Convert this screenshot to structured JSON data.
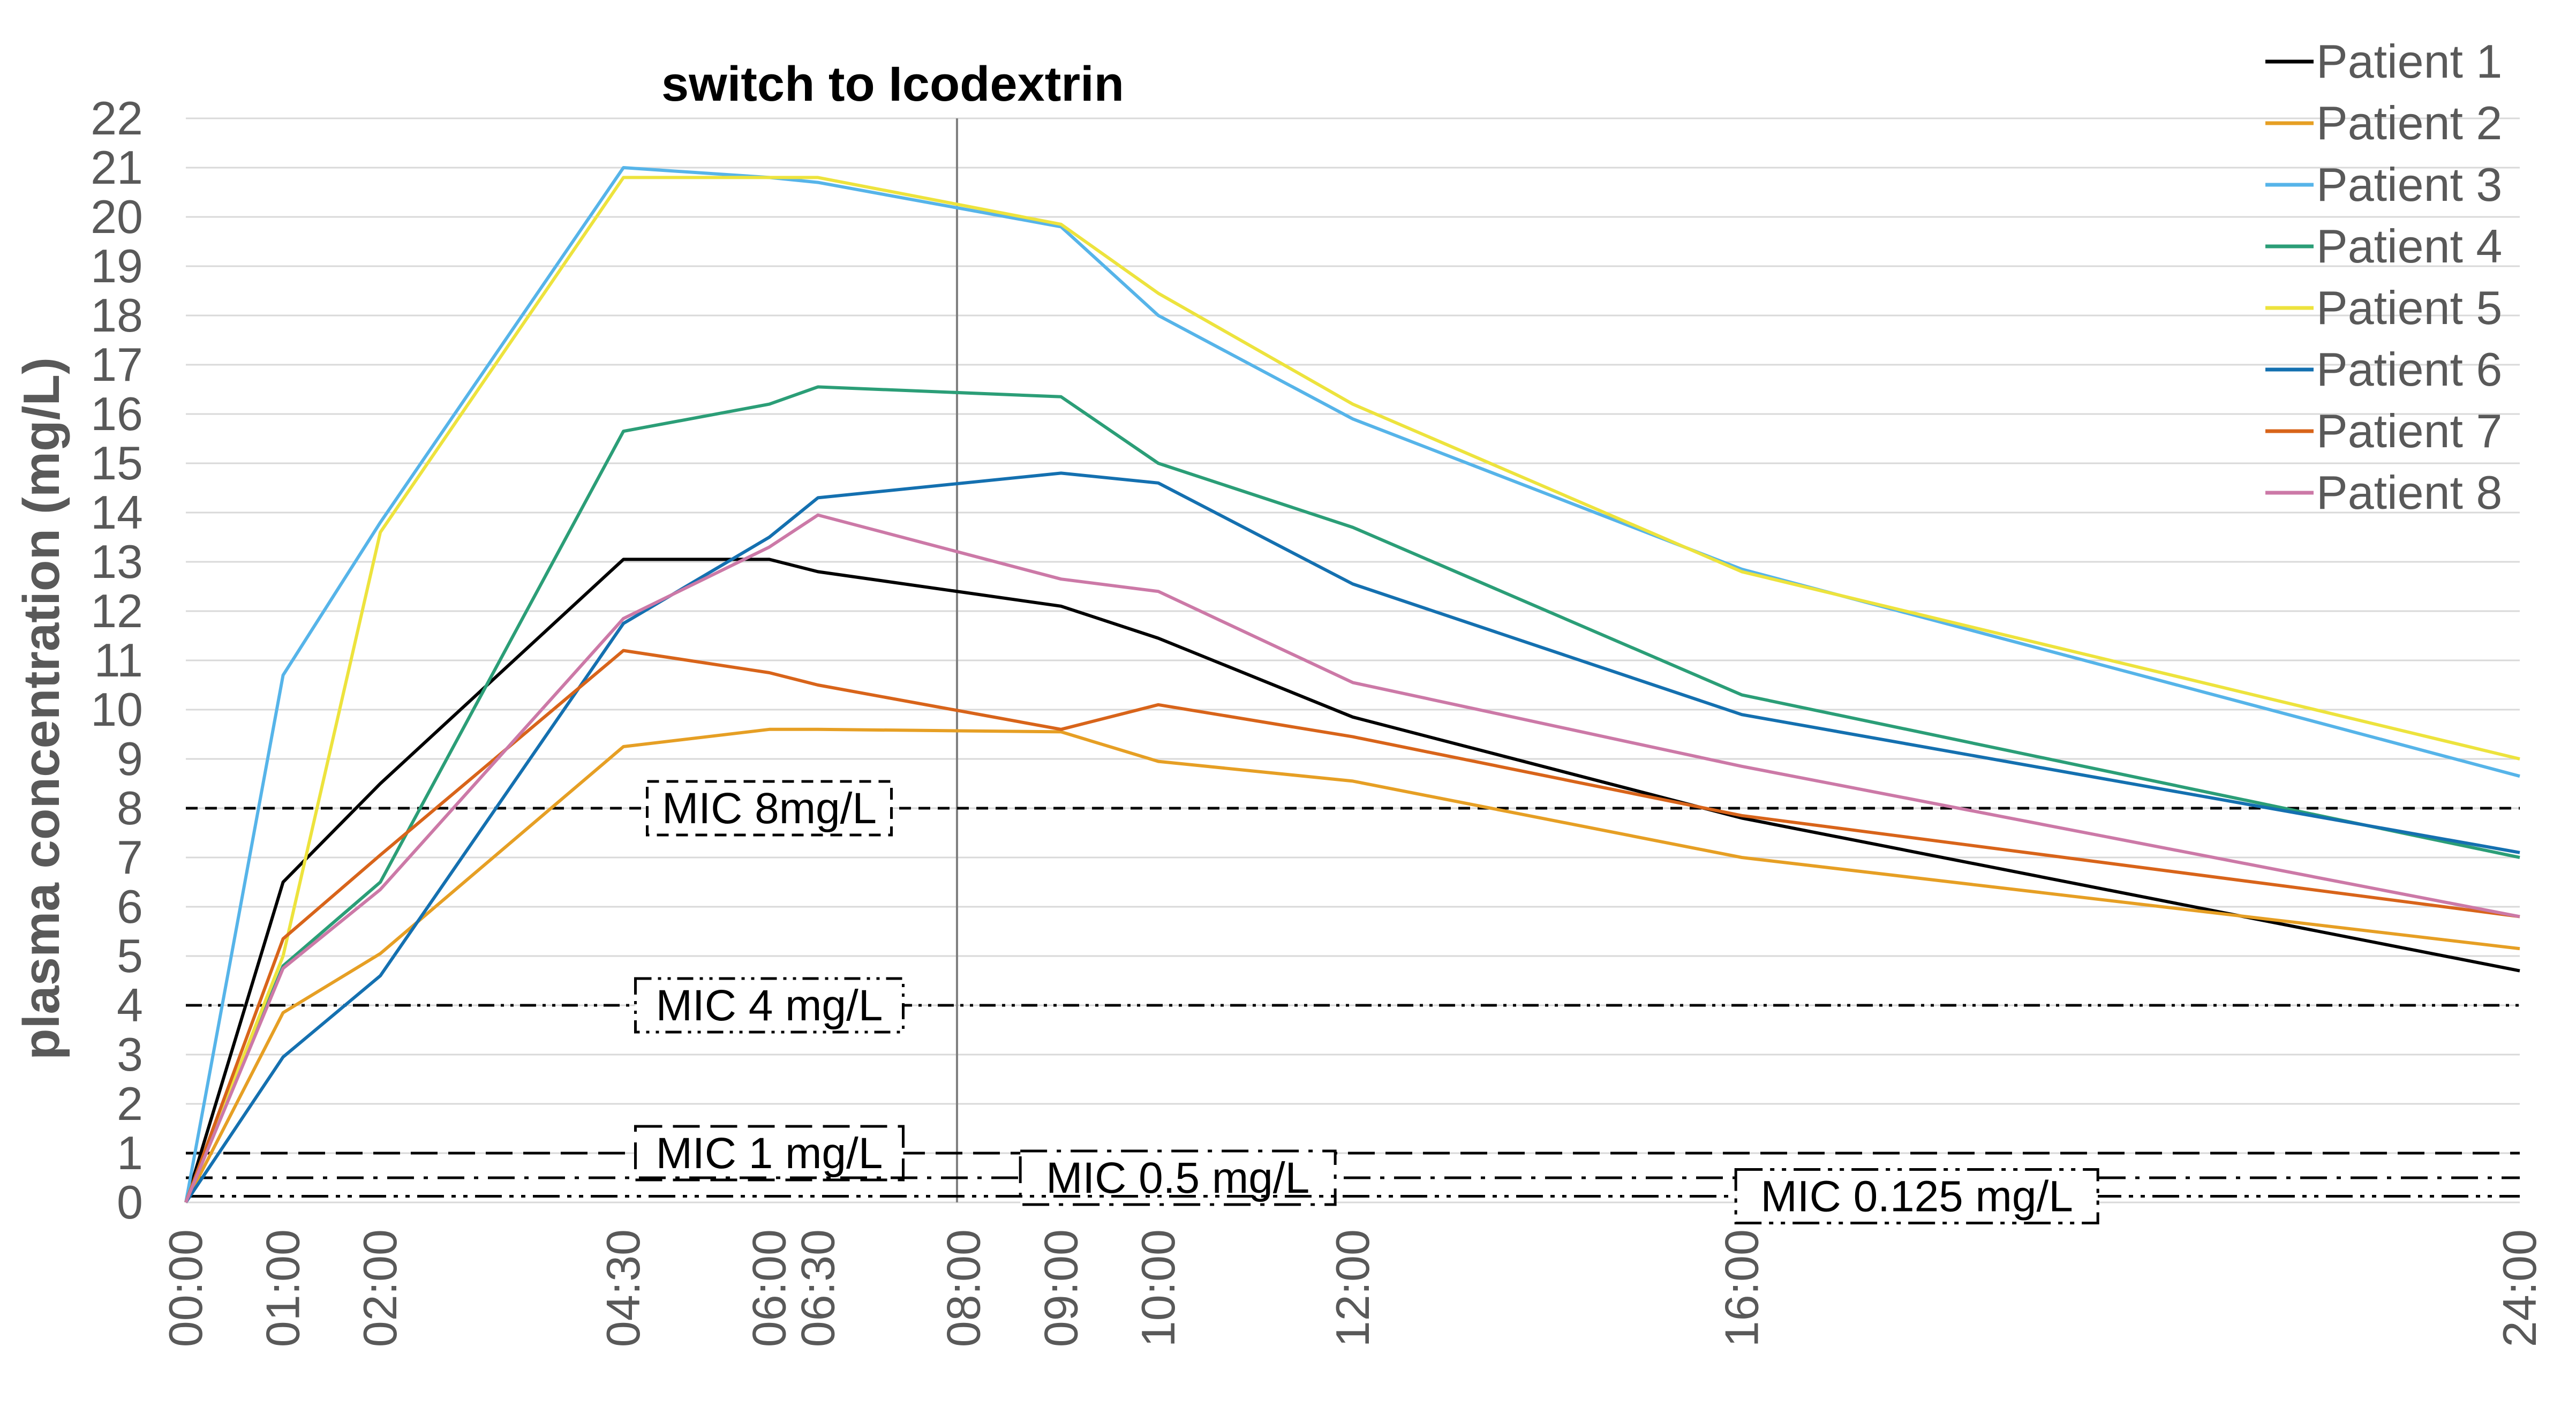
{
  "chart_data": {
    "type": "line",
    "ylabel": "plasma concentration (mg/L)",
    "xlabel": "",
    "ylim": [
      0,
      22
    ],
    "y_ticks": [
      0,
      1,
      2,
      3,
      4,
      5,
      6,
      7,
      8,
      9,
      10,
      11,
      12,
      13,
      14,
      15,
      16,
      17,
      18,
      19,
      20,
      21,
      22
    ],
    "x_range_hours": [
      0,
      24
    ],
    "x_ticks": [
      {
        "label": "00:00",
        "hours": 0
      },
      {
        "label": "01:00",
        "hours": 1
      },
      {
        "label": "02:00",
        "hours": 2
      },
      {
        "label": "04:30",
        "hours": 4.5
      },
      {
        "label": "06:00",
        "hours": 6
      },
      {
        "label": "06:30",
        "hours": 6.5
      },
      {
        "label": "08:00",
        "hours": 8
      },
      {
        "label": "09:00",
        "hours": 9
      },
      {
        "label": "10:00",
        "hours": 10
      },
      {
        "label": "12:00",
        "hours": 12
      },
      {
        "label": "16:00",
        "hours": 16
      },
      {
        "label": "24:00",
        "hours": 24
      }
    ],
    "grid": "horizontal",
    "legend_position": "top-right",
    "annotation": {
      "text": "switch to Icodextrin",
      "x": 7.93
    },
    "thresholds": [
      {
        "label": "MIC 8mg/L",
        "y": 8,
        "style": "dashed",
        "label_x": 6.0
      },
      {
        "label": "MIC 4 mg/L",
        "y": 4,
        "style": "dashdotdot",
        "label_x": 6.0
      },
      {
        "label": "MIC 1 mg/L",
        "y": 1,
        "style": "longdash",
        "label_x": 6.0
      },
      {
        "label": "MIC 0.5 mg/L",
        "y": 0.5,
        "style": "longdashdot",
        "label_x": 10.2
      },
      {
        "label": "MIC 0.125 mg/L",
        "y": 0.125,
        "style": "longdashdotdot",
        "label_x": 17.8
      }
    ],
    "series": [
      {
        "name": "Patient 1",
        "color": "#000000",
        "points": [
          [
            0,
            0
          ],
          [
            1,
            6.5
          ],
          [
            2,
            8.5
          ],
          [
            4.5,
            13.05
          ],
          [
            6,
            13.05
          ],
          [
            6.5,
            12.8
          ],
          [
            9,
            12.1
          ],
          [
            10,
            11.45
          ],
          [
            12,
            9.85
          ],
          [
            16,
            7.8
          ],
          [
            24,
            4.7
          ]
        ]
      },
      {
        "name": "Patient 2",
        "color": "#E69F24",
        "points": [
          [
            0,
            0
          ],
          [
            1,
            3.85
          ],
          [
            2,
            5.05
          ],
          [
            4.5,
            9.25
          ],
          [
            6,
            9.6
          ],
          [
            6.5,
            9.6
          ],
          [
            9,
            9.55
          ],
          [
            10,
            8.95
          ],
          [
            12,
            8.55
          ],
          [
            16,
            7.0
          ],
          [
            24,
            5.15
          ]
        ]
      },
      {
        "name": "Patient 3",
        "color": "#56B4E9",
        "points": [
          [
            0,
            0
          ],
          [
            1,
            10.7
          ],
          [
            2,
            13.8
          ],
          [
            4.5,
            21.0
          ],
          [
            6,
            20.8
          ],
          [
            6.5,
            20.7
          ],
          [
            9,
            19.8
          ],
          [
            10,
            18.0
          ],
          [
            12,
            15.9
          ],
          [
            16,
            12.85
          ],
          [
            24,
            8.65
          ]
        ]
      },
      {
        "name": "Patient 4",
        "color": "#2B9E77",
        "points": [
          [
            0,
            0
          ],
          [
            1,
            4.8
          ],
          [
            2,
            6.5
          ],
          [
            4.5,
            15.65
          ],
          [
            6,
            16.2
          ],
          [
            6.5,
            16.55
          ],
          [
            9,
            16.35
          ],
          [
            10,
            15.0
          ],
          [
            12,
            13.7
          ],
          [
            16,
            10.3
          ],
          [
            24,
            7.0
          ]
        ]
      },
      {
        "name": "Patient 5",
        "color": "#EDE33D",
        "points": [
          [
            0,
            0
          ],
          [
            1,
            5.0
          ],
          [
            2,
            13.6
          ],
          [
            4.5,
            20.8
          ],
          [
            6,
            20.8
          ],
          [
            6.5,
            20.8
          ],
          [
            9,
            19.85
          ],
          [
            10,
            18.45
          ],
          [
            12,
            16.2
          ],
          [
            16,
            12.8
          ],
          [
            24,
            9.0
          ]
        ]
      },
      {
        "name": "Patient 6",
        "color": "#1470B0",
        "points": [
          [
            0,
            0
          ],
          [
            1,
            2.95
          ],
          [
            2,
            4.6
          ],
          [
            4.5,
            11.75
          ],
          [
            6,
            13.5
          ],
          [
            6.5,
            14.3
          ],
          [
            9,
            14.8
          ],
          [
            10,
            14.6
          ],
          [
            12,
            12.55
          ],
          [
            16,
            9.9
          ],
          [
            24,
            7.1
          ]
        ]
      },
      {
        "name": "Patient 7",
        "color": "#D8641A",
        "points": [
          [
            0,
            0
          ],
          [
            1,
            5.35
          ],
          [
            2,
            7.05
          ],
          [
            4.5,
            11.2
          ],
          [
            6,
            10.75
          ],
          [
            6.5,
            10.5
          ],
          [
            9,
            9.6
          ],
          [
            10,
            10.1
          ],
          [
            12,
            9.45
          ],
          [
            16,
            7.85
          ],
          [
            24,
            5.8
          ]
        ]
      },
      {
        "name": "Patient 8",
        "color": "#CC79A7",
        "points": [
          [
            0,
            0
          ],
          [
            1,
            4.75
          ],
          [
            2,
            6.35
          ],
          [
            4.5,
            11.85
          ],
          [
            6,
            13.3
          ],
          [
            6.5,
            13.95
          ],
          [
            9,
            12.65
          ],
          [
            10,
            12.4
          ],
          [
            12,
            10.55
          ],
          [
            16,
            8.85
          ],
          [
            24,
            5.8
          ]
        ]
      }
    ]
  }
}
